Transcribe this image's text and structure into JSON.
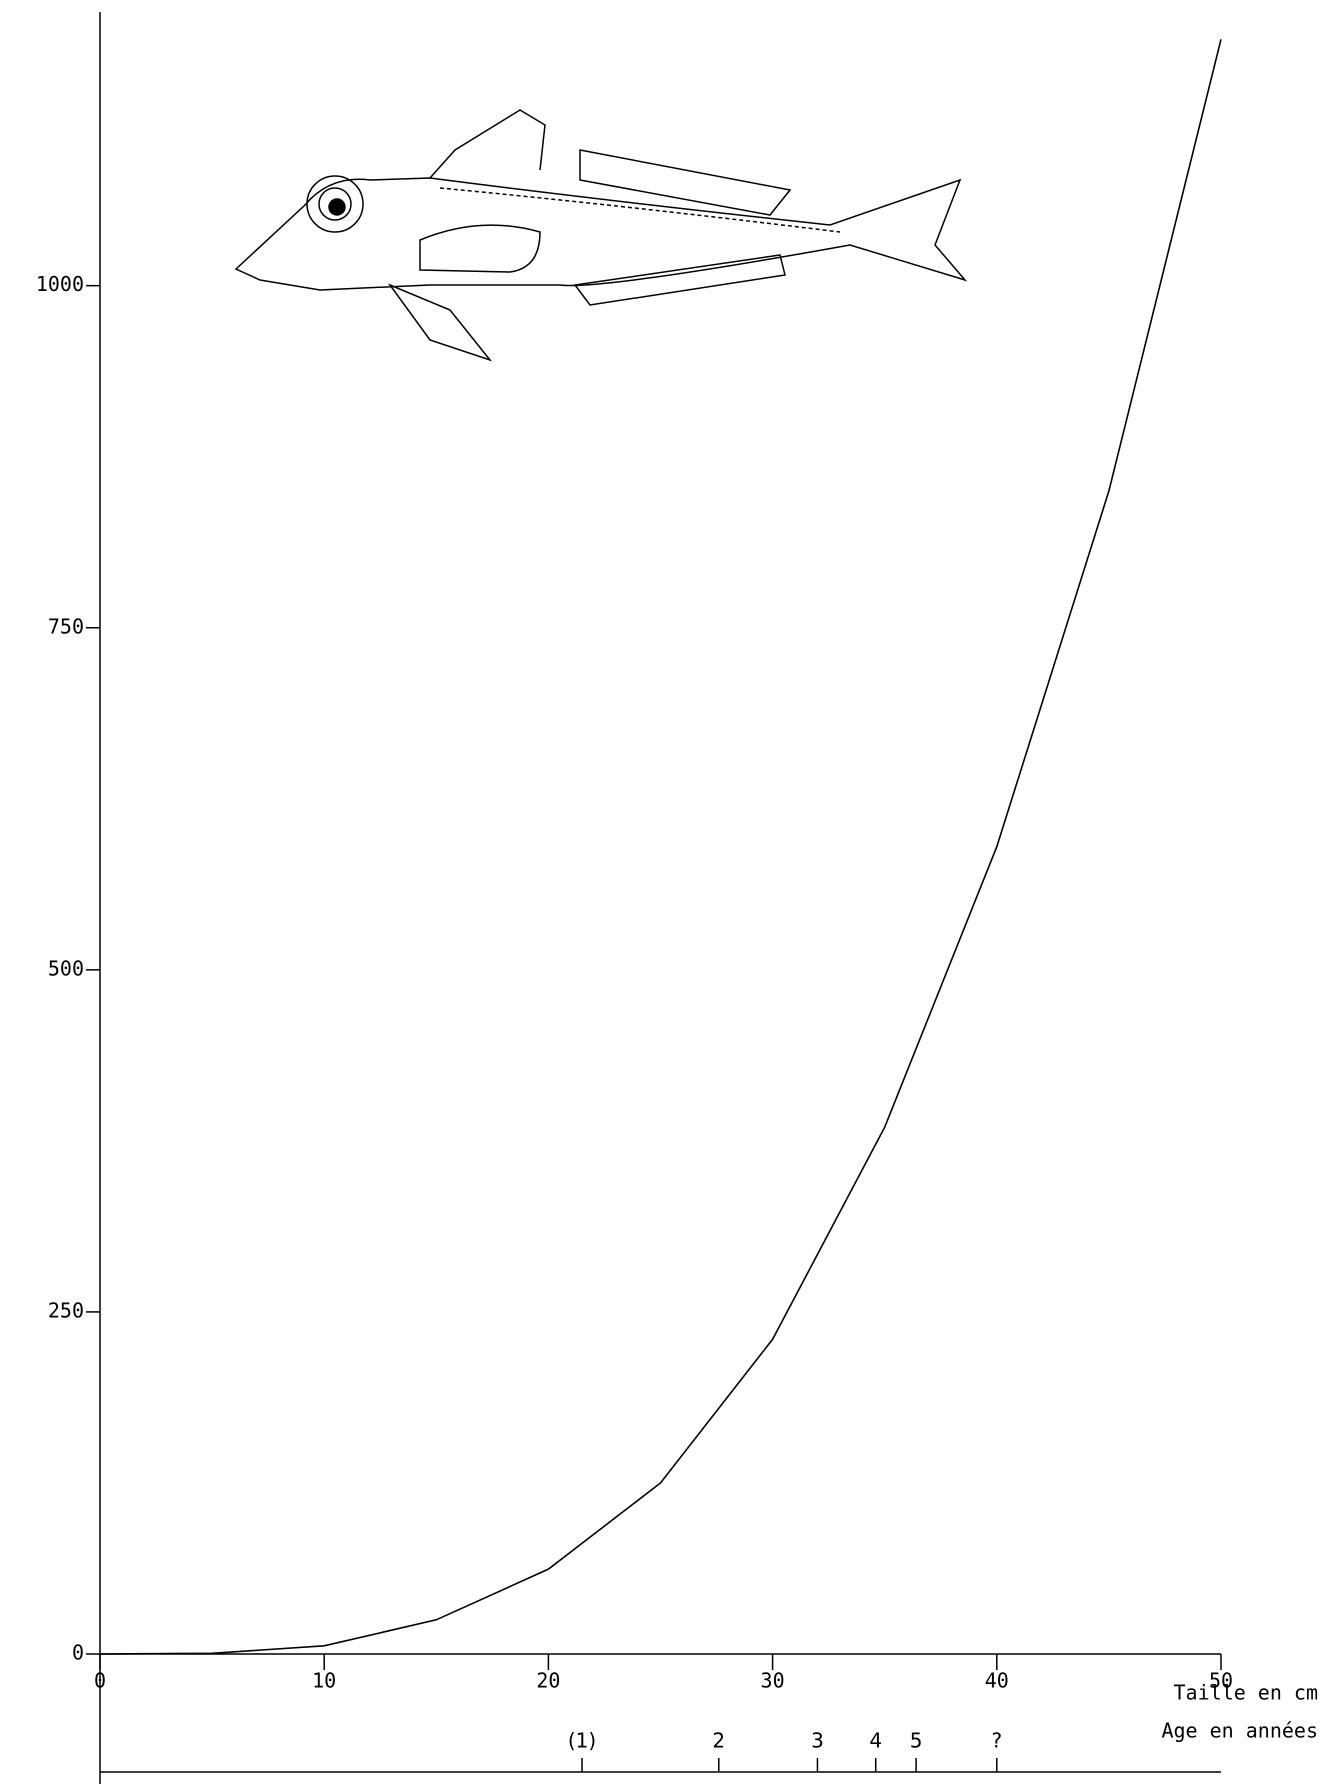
{
  "chart_data": {
    "type": "line",
    "x_label": "Taille en cm",
    "age_label": "Age en années",
    "x": [
      0,
      5,
      10,
      15,
      20,
      25,
      30,
      35,
      40,
      45,
      50
    ],
    "series": [
      {
        "color": "#000000",
        "values": [
          0,
          0.5,
          6,
          25,
          62,
          125,
          230,
          385,
          590,
          850,
          1180
        ]
      }
    ],
    "xlim": [
      0,
      50
    ],
    "xticks": [
      0,
      10,
      20,
      30,
      40,
      50
    ],
    "ylim": [
      0,
      1200
    ],
    "yticks": [
      0,
      250,
      500,
      750,
      1000
    ],
    "age_markers": [
      {
        "label": "(1)",
        "x": 21.5
      },
      {
        "label": "2",
        "x": 27.6
      },
      {
        "label": "3",
        "x": 32
      },
      {
        "label": "4",
        "x": 34.6
      },
      {
        "label": "5",
        "x": 36.4
      },
      {
        "label": "?",
        "x": 40
      }
    ]
  }
}
